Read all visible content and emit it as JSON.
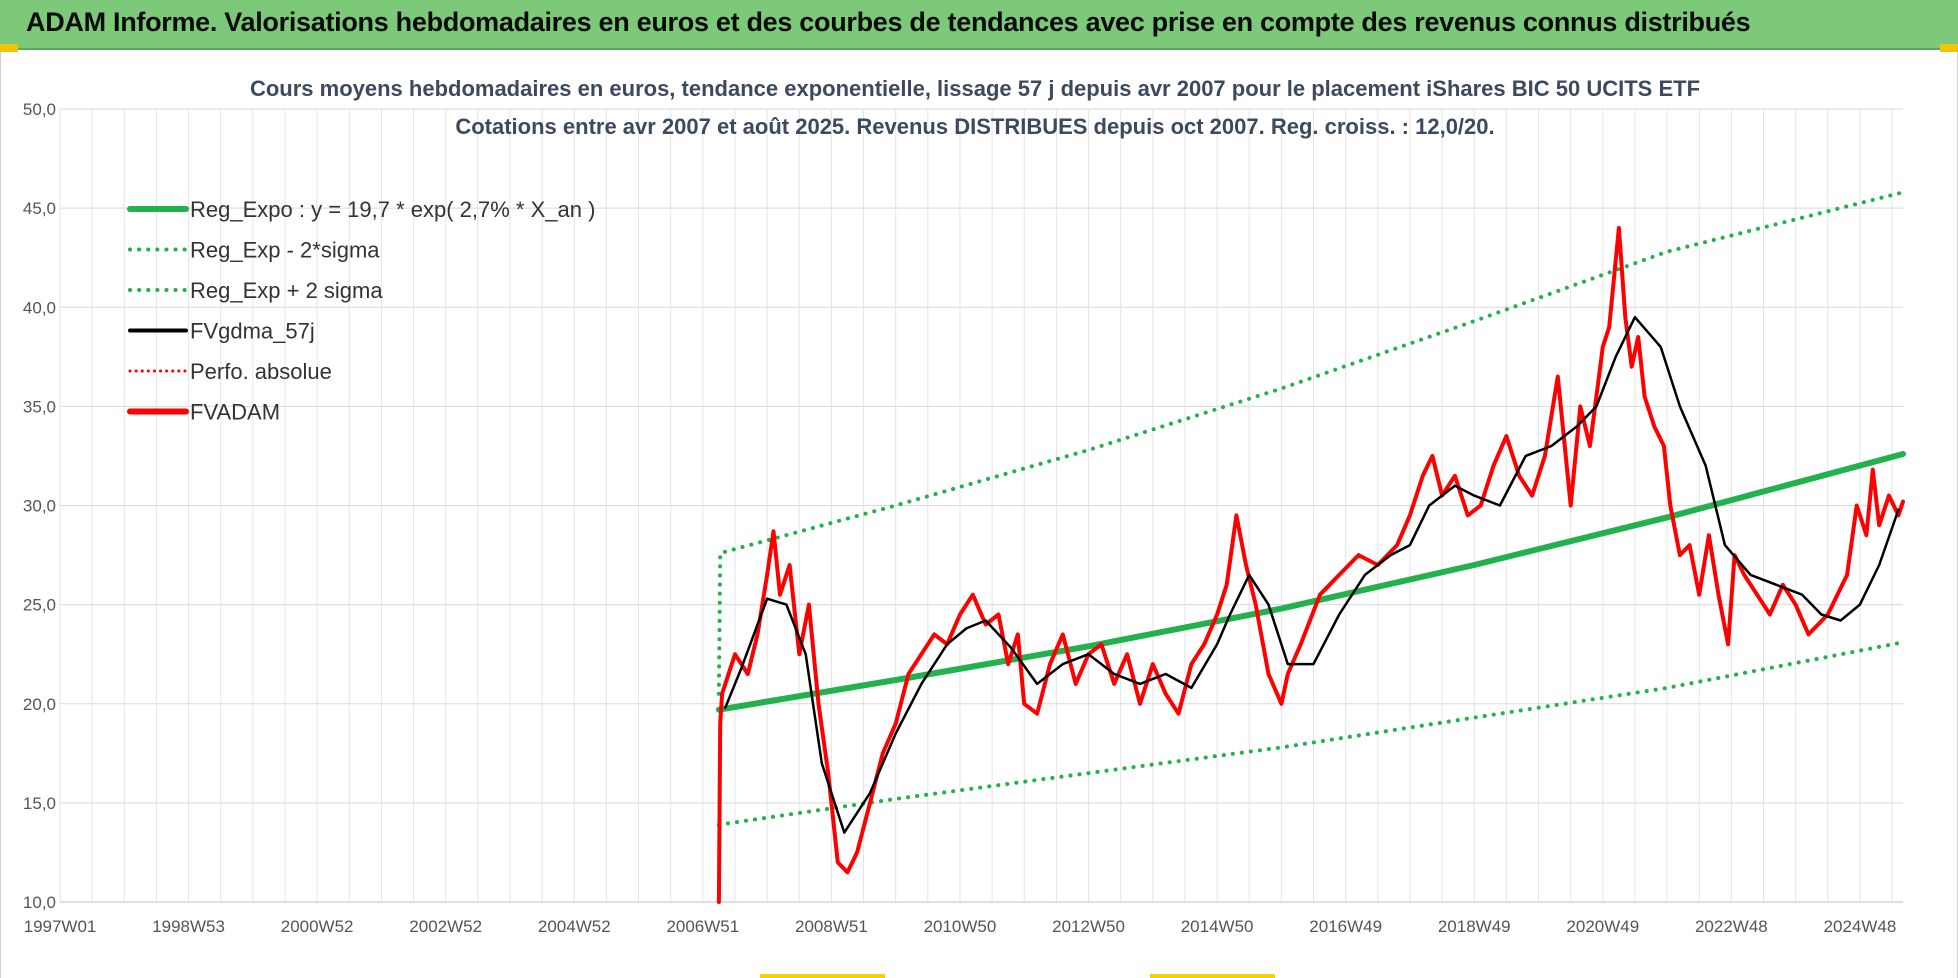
{
  "banner": {
    "title": "ADAM Informe. Valorisations hebdomadaires en euros et des courbes de tendances avec prise en compte des revenus connus distribués"
  },
  "colors": {
    "banner": "#7dc97a",
    "trend": "#22b14c",
    "band": "#22b14c",
    "average": "#000000",
    "price": "#ff0000",
    "perf": "#ff0000"
  },
  "chart_data": {
    "type": "line",
    "title": "Cours moyens hebdomadaires en euros, tendance exponentielle, lissage 57 j depuis avr 2007 pour le placement iShares BIC 50 UCITS ETF",
    "subtitle": "Cotations entre avr 2007 et août 2025. Revenus DISTRIBUES depuis oct 2007. Reg. croiss. : 12,0/20.",
    "xlabel": "",
    "ylabel": "",
    "ylim": [
      10,
      50
    ],
    "xlim": [
      1997.0,
      2025.67
    ],
    "grid": true,
    "legend_position": "top-left",
    "y_ticks": [
      "10,0",
      "15,0",
      "20,0",
      "25,0",
      "30,0",
      "35,0",
      "40,0",
      "45,0",
      "50,0"
    ],
    "x_ticks": [
      {
        "label": "1997W01",
        "x": 1997.0
      },
      {
        "label": "1998W53",
        "x": 1999.0
      },
      {
        "label": "2000W52",
        "x": 2001.0
      },
      {
        "label": "2002W52",
        "x": 2003.0
      },
      {
        "label": "2004W52",
        "x": 2005.0
      },
      {
        "label": "2006W51",
        "x": 2007.0
      },
      {
        "label": "2008W51",
        "x": 2009.0
      },
      {
        "label": "2010W50",
        "x": 2011.0
      },
      {
        "label": "2012W50",
        "x": 2013.0
      },
      {
        "label": "2014W50",
        "x": 2015.0
      },
      {
        "label": "2016W49",
        "x": 2017.0
      },
      {
        "label": "2018W49",
        "x": 2019.0
      },
      {
        "label": "2020W49",
        "x": 2021.0
      },
      {
        "label": "2022W48",
        "x": 2023.0
      },
      {
        "label": "2024W48",
        "x": 2025.0
      }
    ],
    "legend": [
      {
        "label": "Reg_Expo : y = 19,7 * exp( 2,7% *  X_an )",
        "style": "solid-thick",
        "color": "#22b14c"
      },
      {
        "label": "Reg_Exp - 2*sigma",
        "style": "dotted",
        "color": "#22b14c"
      },
      {
        "label": "Reg_Exp + 2 sigma",
        "style": "dotted",
        "color": "#22b14c"
      },
      {
        "label": "FVgdma_57j",
        "style": "solid",
        "color": "#000000"
      },
      {
        "label": "Perfo. absolue",
        "style": "dotted",
        "color": "#ff0000"
      },
      {
        "label": "FVADAM",
        "style": "solid-thick",
        "color": "#ff0000"
      }
    ],
    "series": [
      {
        "name": "Reg_Expo : y = 19,7 * exp( 2,7% *  X_an )",
        "x": [
          2007.25,
          2010,
          2013,
          2016,
          2019,
          2022,
          2025.67
        ],
        "y": [
          19.7,
          21.2,
          22.9,
          24.8,
          27.0,
          29.4,
          32.6
        ]
      },
      {
        "name": "Reg_Exp - 2*sigma",
        "x": [
          2007.25,
          2010,
          2013,
          2016,
          2019,
          2022,
          2025.67
        ],
        "y": [
          13.9,
          15.2,
          16.5,
          17.8,
          19.3,
          20.8,
          23.1
        ]
      },
      {
        "name": "Reg_Exp + 2 sigma",
        "x": [
          2007.25,
          2007.27,
          2010,
          2013,
          2016,
          2019,
          2022,
          2025.67
        ],
        "y": [
          20.5,
          27.6,
          30.0,
          32.8,
          35.9,
          39.3,
          42.8,
          45.8
        ]
      },
      {
        "name": "FVgdma_57j",
        "x": [
          2007.35,
          2007.6,
          2008.0,
          2008.3,
          2008.6,
          2008.85,
          2009.2,
          2009.6,
          2010.0,
          2010.4,
          2010.8,
          2011.1,
          2011.4,
          2011.8,
          2012.2,
          2012.6,
          2013.0,
          2013.4,
          2013.8,
          2014.2,
          2014.6,
          2015.0,
          2015.2,
          2015.5,
          2015.8,
          2016.1,
          2016.5,
          2016.9,
          2017.3,
          2017.7,
          2018.0,
          2018.3,
          2018.7,
          2019.0,
          2019.4,
          2019.8,
          2020.2,
          2020.6,
          2020.9,
          2021.2,
          2021.5,
          2021.9,
          2022.2,
          2022.6,
          2022.9,
          2023.3,
          2023.7,
          2024.1,
          2024.4,
          2024.7,
          2025.0,
          2025.3,
          2025.6
        ],
        "y": [
          19.8,
          21.8,
          25.3,
          25.0,
          22.5,
          17.0,
          13.5,
          15.5,
          18.5,
          21.0,
          23.0,
          23.8,
          24.2,
          22.8,
          21.0,
          22.0,
          22.5,
          21.5,
          21.0,
          21.5,
          20.8,
          23.0,
          24.5,
          26.5,
          25.0,
          22.0,
          22.0,
          24.5,
          26.5,
          27.5,
          28.0,
          30.0,
          31.0,
          30.5,
          30.0,
          32.5,
          33.0,
          34.0,
          35.0,
          37.5,
          39.5,
          38.0,
          35.0,
          32.0,
          28.0,
          26.5,
          26.0,
          25.5,
          24.5,
          24.2,
          25.0,
          27.0,
          29.8
        ]
      },
      {
        "name": "FVADAM",
        "x": [
          2007.25,
          2007.27,
          2007.3,
          2007.5,
          2007.7,
          2007.85,
          2008.0,
          2008.1,
          2008.2,
          2008.35,
          2008.5,
          2008.65,
          2008.8,
          2008.95,
          2009.1,
          2009.25,
          2009.4,
          2009.6,
          2009.8,
          2010.0,
          2010.2,
          2010.4,
          2010.6,
          2010.8,
          2011.0,
          2011.2,
          2011.4,
          2011.6,
          2011.75,
          2011.9,
          2012.0,
          2012.2,
          2012.4,
          2012.6,
          2012.8,
          2013.0,
          2013.2,
          2013.4,
          2013.6,
          2013.8,
          2014.0,
          2014.2,
          2014.4,
          2014.6,
          2014.8,
          2015.0,
          2015.15,
          2015.3,
          2015.45,
          2015.6,
          2015.8,
          2016.0,
          2016.1,
          2016.3,
          2016.6,
          2016.9,
          2017.2,
          2017.5,
          2017.8,
          2018.0,
          2018.2,
          2018.35,
          2018.5,
          2018.7,
          2018.9,
          2019.1,
          2019.3,
          2019.5,
          2019.7,
          2019.9,
          2020.1,
          2020.3,
          2020.5,
          2020.65,
          2020.8,
          2020.9,
          2021.0,
          2021.1,
          2021.25,
          2021.35,
          2021.45,
          2021.55,
          2021.65,
          2021.8,
          2021.95,
          2022.05,
          2022.2,
          2022.35,
          2022.5,
          2022.65,
          2022.8,
          2022.95,
          2023.05,
          2023.2,
          2023.4,
          2023.6,
          2023.8,
          2024.0,
          2024.2,
          2024.35,
          2024.5,
          2024.65,
          2024.8,
          2024.95,
          2025.1,
          2025.2,
          2025.3,
          2025.45,
          2025.6,
          2025.67
        ],
        "y": [
          10.0,
          19.0,
          20.5,
          22.5,
          21.5,
          23.5,
          26.5,
          28.7,
          25.5,
          27.0,
          22.5,
          25.0,
          20.0,
          16.5,
          12.0,
          11.5,
          12.5,
          15.0,
          17.5,
          19.0,
          21.5,
          22.5,
          23.5,
          23.0,
          24.5,
          25.5,
          24.0,
          24.5,
          22.0,
          23.5,
          20.0,
          19.5,
          22.0,
          23.5,
          21.0,
          22.5,
          23.0,
          21.0,
          22.5,
          20.0,
          22.0,
          20.5,
          19.5,
          22.0,
          23.0,
          24.5,
          26.0,
          29.5,
          27.0,
          25.0,
          21.5,
          20.0,
          21.5,
          23.0,
          25.5,
          26.5,
          27.5,
          27.0,
          28.0,
          29.5,
          31.5,
          32.5,
          30.5,
          31.5,
          29.5,
          30.0,
          32.0,
          33.5,
          31.5,
          30.5,
          32.5,
          36.5,
          30.0,
          35.0,
          33.0,
          35.5,
          38.0,
          39.0,
          44.0,
          39.5,
          37.0,
          38.5,
          35.5,
          34.0,
          33.0,
          30.0,
          27.5,
          28.0,
          25.5,
          28.5,
          25.5,
          23.0,
          27.5,
          26.5,
          25.5,
          24.5,
          26.0,
          25.0,
          23.5,
          24.0,
          24.5,
          25.5,
          26.5,
          30.0,
          28.5,
          31.8,
          29.0,
          30.5,
          29.5,
          30.2
        ]
      }
    ]
  }
}
